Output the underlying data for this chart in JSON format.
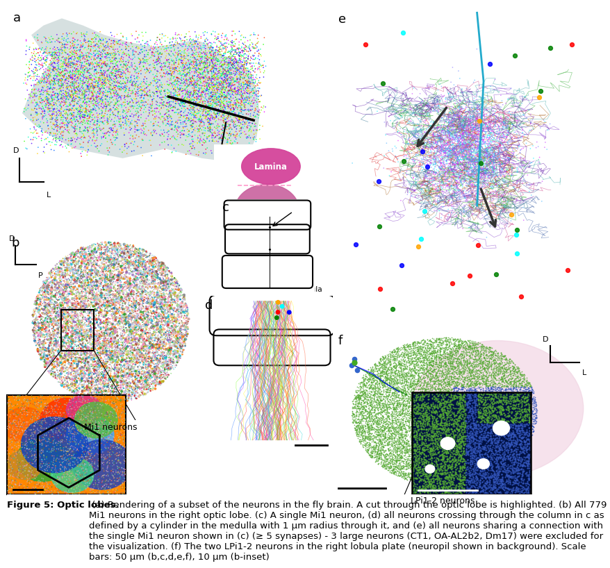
{
  "figure_width": 8.77,
  "figure_height": 7.94,
  "dpi": 100,
  "bg_color": "#ffffff",
  "caption_bold": "Figure 5: Optic lobes.",
  "caption_normal": " (a) Rendering of a subset of the neurons in the fly brain. A cut through the optic lobe is highlighted. (b) All 779 Mi1 neurons in the right optic lobe. (c) A single Mi1 neuron, (d) all neurons crossing through the column in c as defined by a cylinder in the medulla with 1 μm radius through it, and (e) all neurons sharing a connection with the single Mi1 neuron shown in (c) (≥ 5 synapses) - 3 large neurons (CT1, OA-AL2b2, Dm17) were excluded for the visualization. (f) The two LPi1-2 neurons in the right lobula plate (neuropil shown in background). Scale bars: 50 μm (b,c,d,e,f), 10 μm (b-inset)",
  "mi1_label": "Mi1 neurons",
  "lpii_label": "LPi1-2 neurons",
  "lamina_color": "#d4449a",
  "medulla_color": "#c9629e",
  "lobula_color": "#7b4ba8",
  "lobula_plate_color": "#d060a0",
  "caption_fontsize": 9.5,
  "panel_label_fontsize": 13
}
